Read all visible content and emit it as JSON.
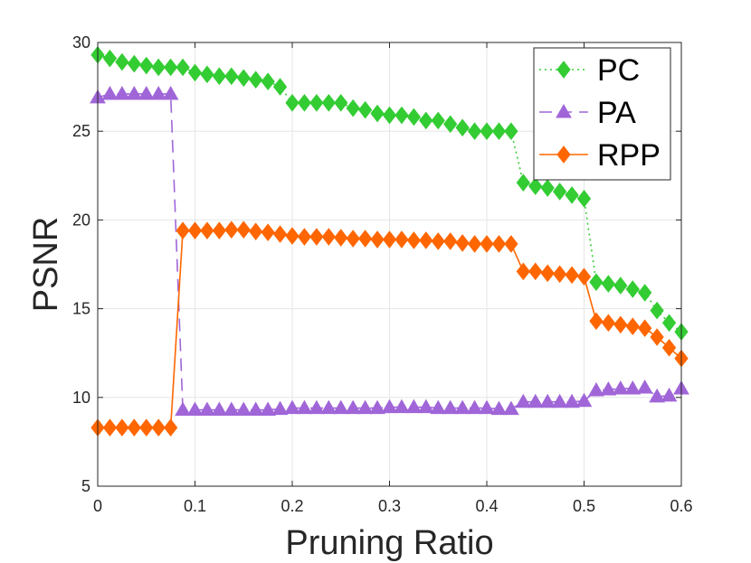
{
  "chart_data": {
    "type": "line",
    "title": "",
    "xlabel": "Pruning Ratio",
    "ylabel": "PSNR",
    "xlim": [
      0,
      0.6
    ],
    "ylim": [
      5,
      30
    ],
    "xticks": [
      0,
      0.1,
      0.2,
      0.3,
      0.4,
      0.5,
      0.6
    ],
    "xtick_labels": [
      "0",
      "0.1",
      "0.2",
      "0.3",
      "0.4",
      "0.5",
      "0.6"
    ],
    "yticks": [
      5,
      10,
      15,
      20,
      25,
      30
    ],
    "ytick_labels": [
      "5",
      "10",
      "15",
      "20",
      "25",
      "30"
    ],
    "grid": true,
    "legend_position": "top-right",
    "x": [
      0,
      0.0125,
      0.025,
      0.0375,
      0.05,
      0.0625,
      0.075,
      0.0875,
      0.1,
      0.1125,
      0.125,
      0.1375,
      0.15,
      0.1625,
      0.175,
      0.1875,
      0.2,
      0.2125,
      0.225,
      0.2375,
      0.25,
      0.2625,
      0.275,
      0.2875,
      0.3,
      0.3125,
      0.325,
      0.3375,
      0.35,
      0.3625,
      0.375,
      0.3875,
      0.4,
      0.4125,
      0.425,
      0.4375,
      0.45,
      0.4625,
      0.475,
      0.4875,
      0.5,
      0.5125,
      0.525,
      0.5375,
      0.55,
      0.5625,
      0.575,
      0.5875,
      0.6
    ],
    "series": [
      {
        "name": "PC",
        "color": "#33cc33",
        "line_style": "dotted",
        "marker": "diamond",
        "values": [
          29.3,
          29.1,
          28.9,
          28.8,
          28.7,
          28.6,
          28.6,
          28.6,
          28.3,
          28.2,
          28.1,
          28.1,
          28.0,
          27.9,
          27.8,
          27.5,
          26.6,
          26.6,
          26.6,
          26.6,
          26.6,
          26.3,
          26.2,
          26.0,
          25.9,
          25.9,
          25.8,
          25.6,
          25.6,
          25.4,
          25.2,
          25.0,
          25.0,
          25.0,
          25.0,
          22.1,
          21.9,
          21.8,
          21.6,
          21.4,
          21.2,
          16.5,
          16.4,
          16.3,
          16.1,
          15.9,
          14.9,
          14.2,
          13.7
        ]
      },
      {
        "name": "PA",
        "color": "#a066d8",
        "line_style": "dashed",
        "marker": "triangle",
        "values": [
          26.9,
          27.1,
          27.1,
          27.1,
          27.1,
          27.1,
          27.1,
          9.3,
          9.3,
          9.3,
          9.3,
          9.3,
          9.3,
          9.3,
          9.3,
          9.35,
          9.4,
          9.4,
          9.4,
          9.4,
          9.4,
          9.4,
          9.4,
          9.4,
          9.45,
          9.45,
          9.45,
          9.45,
          9.4,
          9.4,
          9.4,
          9.4,
          9.4,
          9.35,
          9.35,
          9.75,
          9.75,
          9.75,
          9.75,
          9.75,
          9.8,
          10.4,
          10.45,
          10.5,
          10.5,
          10.55,
          10.05,
          10.1,
          10.5
        ]
      },
      {
        "name": "RPP",
        "color": "#ff6600",
        "line_style": "solid",
        "marker": "diamond",
        "values": [
          8.3,
          8.3,
          8.3,
          8.3,
          8.3,
          8.3,
          8.3,
          19.4,
          19.4,
          19.4,
          19.4,
          19.45,
          19.45,
          19.35,
          19.3,
          19.2,
          19.1,
          19.05,
          19.05,
          19.05,
          19.0,
          18.95,
          18.95,
          18.9,
          18.9,
          18.9,
          18.85,
          18.85,
          18.8,
          18.8,
          18.7,
          18.65,
          18.65,
          18.65,
          18.65,
          17.1,
          17.1,
          17.0,
          16.95,
          16.9,
          16.8,
          14.3,
          14.2,
          14.1,
          14.0,
          13.9,
          13.4,
          12.8,
          12.2
        ]
      }
    ]
  }
}
